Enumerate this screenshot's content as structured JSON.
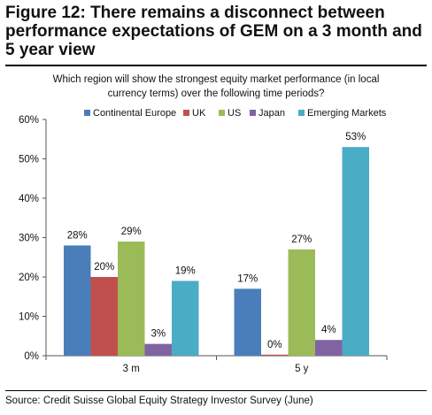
{
  "figure_title": "Figure 12: There remains a disconnect between performance expectations of GEM on a 3 month and 5 year view",
  "source": "Source: Credit Suisse Global Equity Strategy Investor Survey (June)",
  "chart_data": {
    "type": "bar",
    "title_lines": [
      "Which region will show the strongest equity market performance (in local",
      "currency terms) over the following time periods?"
    ],
    "categories": [
      "3 m",
      "5 y"
    ],
    "series": [
      {
        "name": "Continental Europe",
        "values": [
          28,
          17
        ],
        "labels": [
          "28%",
          "17%"
        ],
        "color": "#4a7ebb"
      },
      {
        "name": "UK",
        "values": [
          20,
          0
        ],
        "labels": [
          "20%",
          "0%"
        ],
        "color": "#c0504d"
      },
      {
        "name": "US",
        "values": [
          29,
          27
        ],
        "labels": [
          "29%",
          "27%"
        ],
        "color": "#9bbb59"
      },
      {
        "name": "Japan",
        "values": [
          3,
          4
        ],
        "labels": [
          "3%",
          "4%"
        ],
        "color": "#8064a2"
      },
      {
        "name": "Emerging Markets",
        "values": [
          19,
          53
        ],
        "labels": [
          "19%",
          "53%"
        ],
        "color": "#4bacc6"
      }
    ],
    "y_ticks": [
      "0%",
      "10%",
      "20%",
      "30%",
      "40%",
      "50%",
      "60%"
    ],
    "ylim": [
      0,
      60
    ],
    "grid": false,
    "legend_position": "top"
  }
}
